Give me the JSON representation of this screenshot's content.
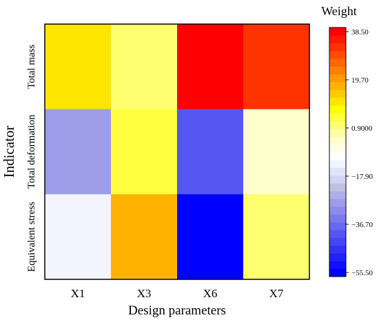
{
  "chart_data": {
    "type": "heatmap",
    "xlabel": "Design parameters",
    "ylabel": "Indicator",
    "x_categories": [
      "X1",
      "X3",
      "X6",
      "X7"
    ],
    "y_categories": [
      "Total mass",
      "Total deformation",
      "Equivalent stress"
    ],
    "values": [
      [
        12.0,
        2.0,
        38.0,
        30.0
      ],
      [
        -27.0,
        6.0,
        -40.0,
        -4.0
      ],
      [
        -13.0,
        15.0,
        -55.0,
        1.5
      ]
    ],
    "colorbar": {
      "title": "Weight",
      "min": -55.5,
      "max": 38.5,
      "tick_labels": [
        "38.50",
        "19.70",
        "0.9000",
        "−17.90",
        "−36.70",
        "−55.50"
      ],
      "colors": [
        "#0000ff",
        "#1010fc",
        "#2121fa",
        "#3333f7",
        "#4545f5",
        "#5656f2",
        "#6868f0",
        "#7a7aee",
        "#8b8beb",
        "#9d9de9",
        "#afafe6",
        "#c0c0e4",
        "#d2d2f2",
        "#e4e4f8",
        "#f4f4fe",
        "#ffffff",
        "#ffffe6",
        "#ffffcc",
        "#ffffa0",
        "#ffff70",
        "#ffff40",
        "#ffff00",
        "#ffe600",
        "#ffcc00",
        "#ffb300",
        "#ff9900",
        "#ff8000",
        "#ff6600",
        "#ff4d00",
        "#ff3300",
        "#ff1a00",
        "#ff0000"
      ]
    }
  }
}
